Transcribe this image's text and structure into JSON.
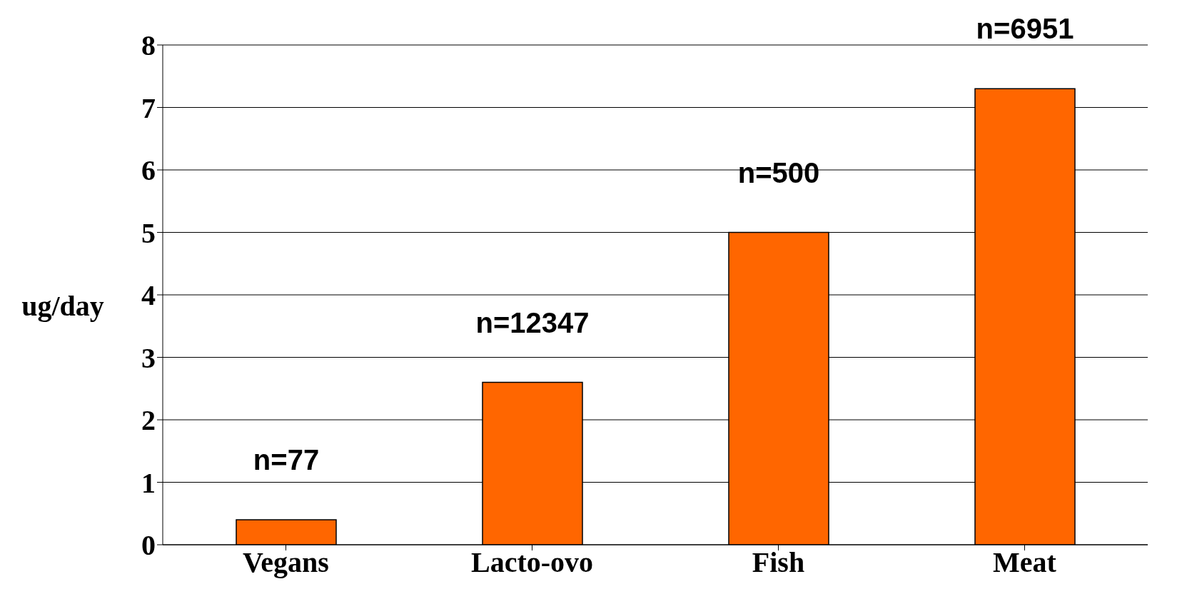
{
  "chart_data": {
    "type": "bar",
    "ylabel": "ug/day",
    "categories": [
      "Vegans",
      "Lacto-ovo",
      "Fish",
      "Meat"
    ],
    "values": [
      0.4,
      2.6,
      5.0,
      7.3
    ],
    "color": "#ff6600",
    "ylim": [
      0,
      8
    ],
    "yticks": [
      0,
      1,
      2,
      3,
      4,
      5,
      6,
      7,
      8
    ],
    "grid": "y",
    "annotations": [
      "n=77",
      "n=12347",
      "n=500",
      "n=6951"
    ]
  }
}
